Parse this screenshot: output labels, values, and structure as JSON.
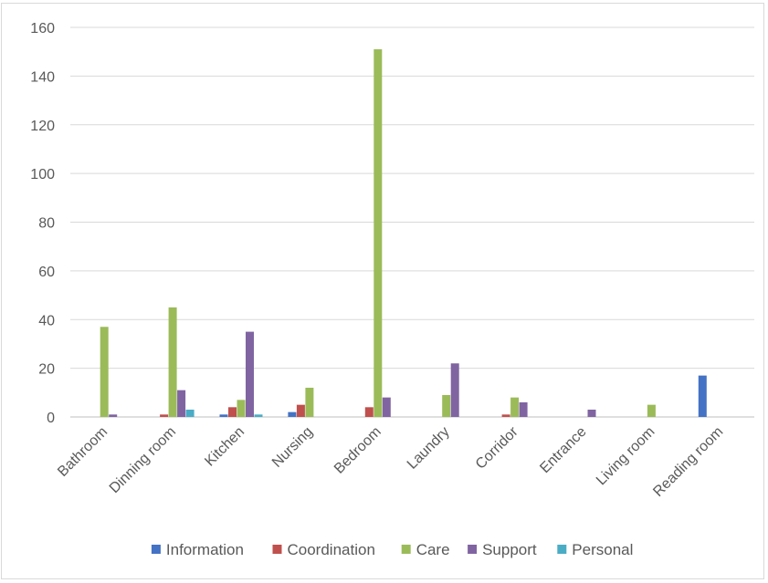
{
  "chart_data": {
    "type": "bar",
    "categories": [
      "Bathroom",
      "Dinning room",
      "Kitchen",
      "Nursing",
      "Bedroom",
      "Laundry",
      "Corridor",
      "Entrance",
      "Living room",
      "Reading room"
    ],
    "series": [
      {
        "name": "Information",
        "color": "#4472c4",
        "values": [
          0,
          0,
          1,
          2,
          0,
          0,
          0,
          0,
          0,
          17
        ]
      },
      {
        "name": "Coordination",
        "color": "#c0504d",
        "values": [
          0,
          1,
          4,
          5,
          4,
          0,
          1,
          0,
          0,
          0
        ]
      },
      {
        "name": "Care",
        "color": "#9bbb59",
        "values": [
          37,
          45,
          7,
          12,
          151,
          9,
          8,
          0,
          5,
          0
        ]
      },
      {
        "name": "Support",
        "color": "#8064a2",
        "values": [
          1,
          11,
          35,
          0,
          8,
          22,
          6,
          3,
          0,
          0
        ]
      },
      {
        "name": "Personal",
        "color": "#4bacc6",
        "values": [
          0,
          3,
          1,
          0,
          0,
          0,
          0,
          0,
          0,
          0
        ]
      }
    ],
    "ylim": [
      0,
      160
    ],
    "yticks": [
      "0",
      "20",
      "40",
      "60",
      "80",
      "100",
      "120",
      "140",
      "160"
    ],
    "grid": true,
    "legend_position": "bottom",
    "colors": {
      "grid": "#d9d9d9",
      "axis_text": "#595959"
    }
  }
}
